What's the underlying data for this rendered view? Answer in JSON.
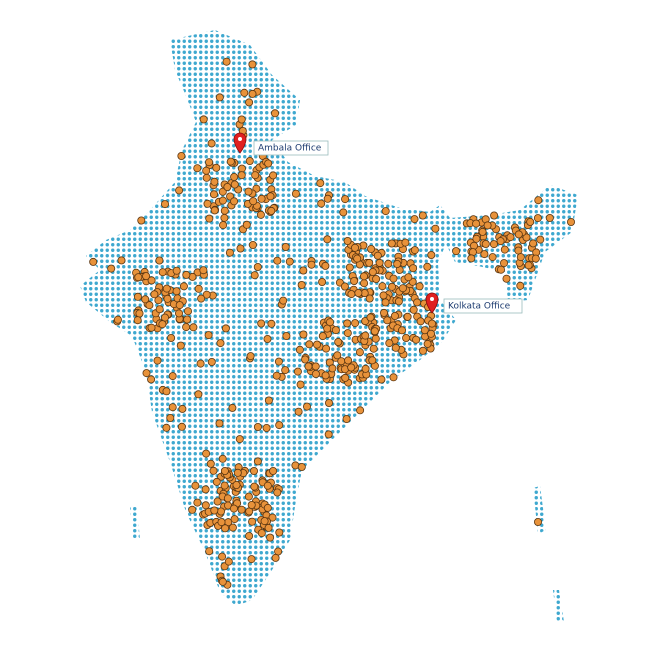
{
  "markers": [
    {
      "label": "Ambala Office"
    },
    {
      "label": "Kolkata Office"
    }
  ]
}
